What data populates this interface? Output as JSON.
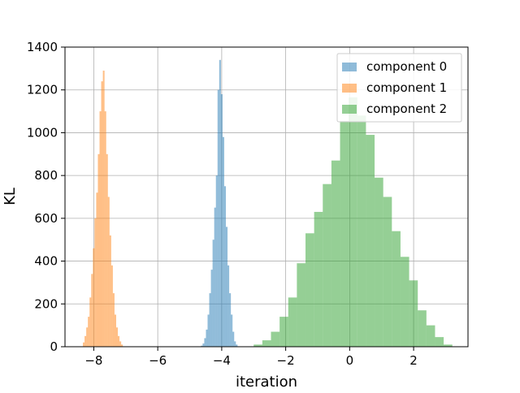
{
  "chart_data": {
    "type": "histogram",
    "title": "",
    "xlabel": "iteration",
    "ylabel": "KL",
    "xlim": [
      -8.9,
      3.7
    ],
    "ylim": [
      0,
      1400
    ],
    "xticks": [
      -8,
      -6,
      -4,
      -2,
      0,
      2
    ],
    "xtick_labels": [
      "−8",
      "−6",
      "−4",
      "−2",
      "0",
      "2"
    ],
    "yticks": [
      0,
      200,
      400,
      600,
      800,
      1000,
      1200,
      1400
    ],
    "ytick_labels": [
      "0",
      "200",
      "400",
      "600",
      "800",
      "1000",
      "1200",
      "1400"
    ],
    "grid": true,
    "legend_position": "top-right",
    "series": [
      {
        "name": "component 0",
        "color": "#1f77b4",
        "alpha": 0.5,
        "bin_start": -4.65,
        "bin_width": 0.052,
        "counts": [
          5,
          15,
          40,
          80,
          150,
          250,
          360,
          500,
          650,
          800,
          1200,
          1340,
          1180,
          980,
          750,
          560,
          380,
          250,
          150,
          70,
          25,
          10
        ]
      },
      {
        "name": "component 1",
        "color": "#ff7f0e",
        "alpha": 0.5,
        "bin_start": -8.34,
        "bin_width": 0.052,
        "counts": [
          20,
          50,
          90,
          140,
          230,
          340,
          460,
          600,
          720,
          900,
          1100,
          1240,
          1290,
          1100,
          900,
          700,
          520,
          380,
          250,
          150,
          90,
          50,
          25,
          10
        ]
      },
      {
        "name": "component 2",
        "color": "#2ca02c",
        "alpha": 0.5,
        "bin_start": -3.0,
        "bin_width": 0.27,
        "counts": [
          10,
          30,
          70,
          140,
          230,
          390,
          530,
          630,
          760,
          870,
          1055,
          1165,
          1080,
          990,
          790,
          700,
          540,
          420,
          310,
          170,
          100,
          45,
          10
        ]
      }
    ]
  }
}
